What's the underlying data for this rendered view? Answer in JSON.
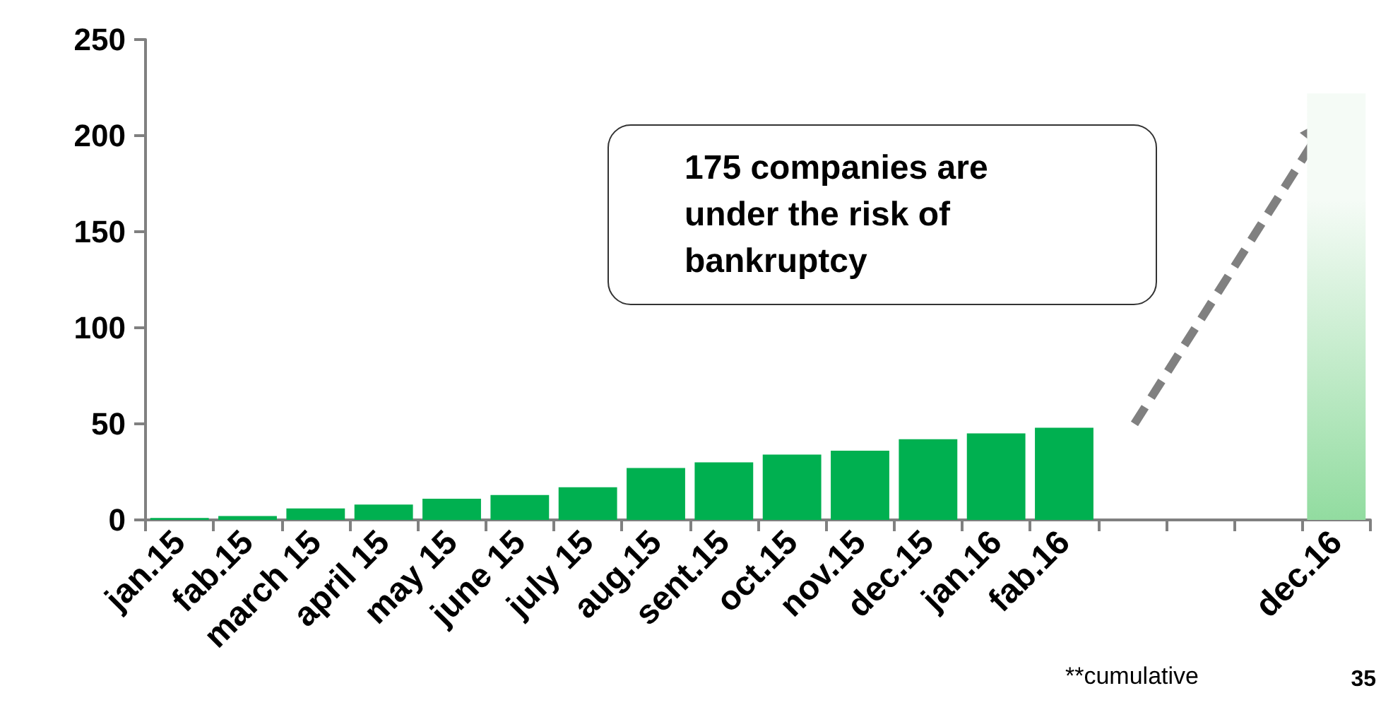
{
  "chart_data": {
    "type": "bar",
    "categories": [
      "jan.15",
      "fab.15",
      "march 15",
      "april 15",
      "may 15",
      "june 15",
      "july 15",
      "aug.15",
      "sent.15",
      "oct.15",
      "nov.15",
      "dec.15",
      "jan.16",
      "fab.16",
      null,
      null,
      null,
      "dec.16"
    ],
    "values": [
      1,
      2,
      6,
      8,
      11,
      13,
      17,
      27,
      30,
      34,
      36,
      42,
      45,
      48,
      null,
      null,
      null,
      222
    ],
    "colors": [
      "#00b050",
      "#00b050",
      "#00b050",
      "#00b050",
      "#00b050",
      "#00b050",
      "#00b050",
      "#00b050",
      "#00b050",
      "#00b050",
      "#00b050",
      "#00b050",
      "#00b050",
      "#00b050",
      "#00b050",
      "#00b050",
      "#00b050",
      "#92dca0"
    ],
    "ylim": [
      0,
      250
    ],
    "yticks": [
      0,
      50,
      100,
      150,
      200,
      250
    ],
    "grid": false,
    "annotations": [
      "175 companies are under the risk of bankruptcy",
      "**cumulative",
      "35"
    ]
  }
}
